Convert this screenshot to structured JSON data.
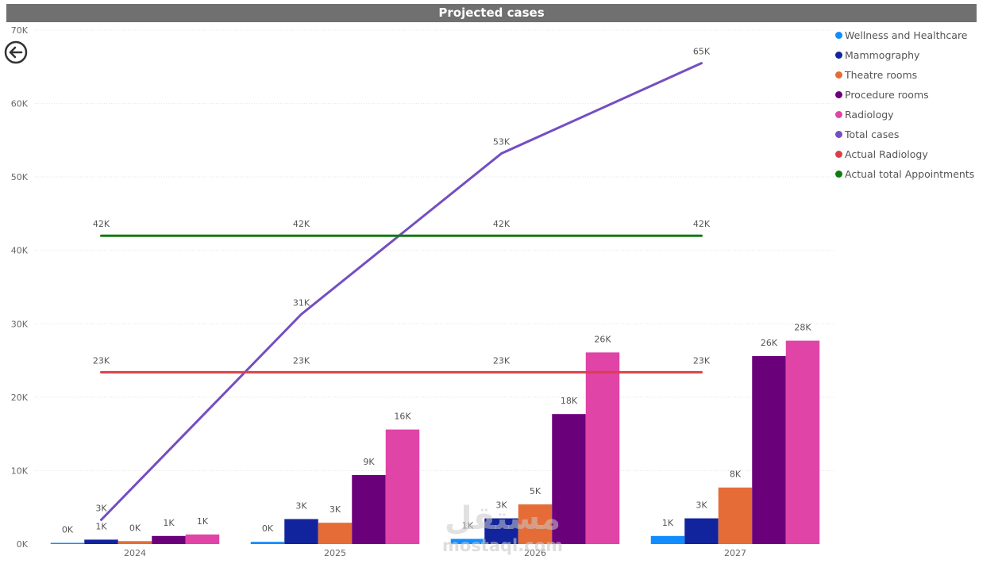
{
  "header": {
    "title": "Projected cases"
  },
  "icons": {
    "back": "back-arrow-icon"
  },
  "watermark": {
    "arabic": "مستقل",
    "latin": "mostaql.com"
  },
  "chart_data": {
    "type": "bar",
    "title": "Projected cases",
    "categories": [
      "2024",
      "2025",
      "2026",
      "2027"
    ],
    "ylim": [
      0,
      70000
    ],
    "yticks": [
      {
        "value": 0,
        "label": "0K"
      },
      {
        "value": 10000,
        "label": "10K"
      },
      {
        "value": 20000,
        "label": "20K"
      },
      {
        "value": 30000,
        "label": "30K"
      },
      {
        "value": 40000,
        "label": "40K"
      },
      {
        "value": 50000,
        "label": "50K"
      },
      {
        "value": 60000,
        "label": "60K"
      },
      {
        "value": 70000,
        "label": "70K"
      }
    ],
    "grid": true,
    "legend": "right",
    "series": [
      {
        "name": "Wellness and Healthcare",
        "kind": "bar",
        "color": "#118DFF",
        "values": [
          100,
          300,
          700,
          1100
        ],
        "labels": [
          "0K",
          "0K",
          "1K",
          "1K"
        ]
      },
      {
        "name": "Mammography",
        "kind": "bar",
        "color": "#12239E",
        "values": [
          600,
          3400,
          3500,
          3500
        ],
        "labels": [
          "1K",
          "3K",
          "3K",
          "3K"
        ]
      },
      {
        "name": "Theatre rooms",
        "kind": "bar",
        "color": "#E66C37",
        "values": [
          400,
          2900,
          5400,
          7700
        ],
        "labels": [
          "0K",
          "3K",
          "5K",
          "8K"
        ]
      },
      {
        "name": "Procedure rooms",
        "kind": "bar",
        "color": "#6B007B",
        "values": [
          1100,
          9400,
          17700,
          25600
        ],
        "labels": [
          "1K",
          "9K",
          "18K",
          "26K"
        ]
      },
      {
        "name": "Radiology",
        "kind": "bar",
        "color": "#E044A7",
        "values": [
          1300,
          15600,
          26100,
          27700
        ],
        "labels": [
          "1K",
          "16K",
          "26K",
          "28K"
        ]
      },
      {
        "name": "Total cases",
        "kind": "line",
        "color": "#744EC2",
        "values": [
          3300,
          31300,
          53200,
          65500
        ],
        "labels": [
          "3K",
          "31K",
          "53K",
          "65K"
        ]
      },
      {
        "name": "Actual Radiology",
        "kind": "line",
        "color": "#D9404A",
        "values": [
          23400,
          23400,
          23400,
          23400
        ],
        "labels": [
          "23K",
          "23K",
          "23K",
          "23K"
        ]
      },
      {
        "name": "Actual total Appointments",
        "kind": "line",
        "color": "#107C10",
        "values": [
          42000,
          42000,
          42000,
          42000
        ],
        "labels": [
          "42K",
          "42K",
          "42K",
          "42K"
        ]
      }
    ]
  }
}
